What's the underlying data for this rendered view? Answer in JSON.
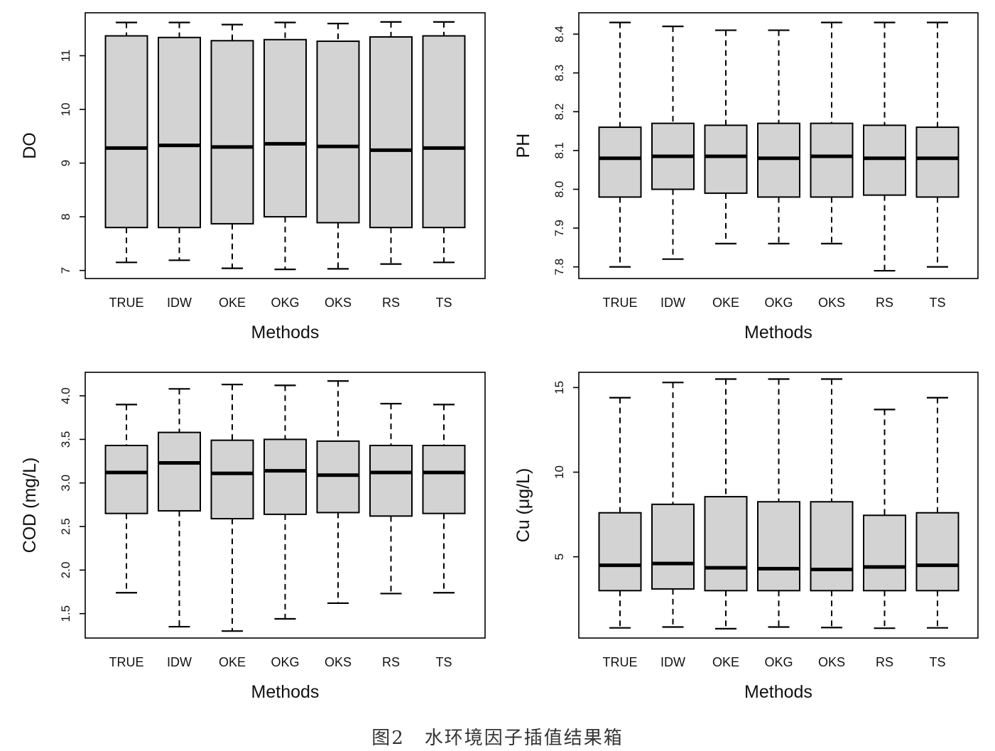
{
  "figure_caption": "图2　水环境因子插值结果箱",
  "chart_data": [
    {
      "type": "box",
      "xlabel": "Methods",
      "ylabel": "DO",
      "categories": [
        "TRUE",
        "IDW",
        "OKE",
        "OKG",
        "OKS",
        "RS",
        "TS"
      ],
      "yticks": [
        7,
        8,
        9,
        10,
        11
      ],
      "ylim": [
        6.85,
        11.8
      ],
      "boxes": [
        {
          "min": 7.15,
          "q1": 7.8,
          "median": 9.28,
          "q3": 11.37,
          "max": 11.62
        },
        {
          "min": 7.19,
          "q1": 7.8,
          "median": 9.33,
          "q3": 11.34,
          "max": 11.62
        },
        {
          "min": 7.04,
          "q1": 7.87,
          "median": 9.3,
          "q3": 11.28,
          "max": 11.58
        },
        {
          "min": 7.02,
          "q1": 8.0,
          "median": 9.36,
          "q3": 11.3,
          "max": 11.62
        },
        {
          "min": 7.03,
          "q1": 7.89,
          "median": 9.31,
          "q3": 11.27,
          "max": 11.6
        },
        {
          "min": 7.12,
          "q1": 7.8,
          "median": 9.24,
          "q3": 11.35,
          "max": 11.63
        },
        {
          "min": 7.15,
          "q1": 7.8,
          "median": 9.28,
          "q3": 11.37,
          "max": 11.63
        }
      ]
    },
    {
      "type": "box",
      "xlabel": "Methods",
      "ylabel": "PH",
      "categories": [
        "TRUE",
        "IDW",
        "OKE",
        "OKG",
        "OKS",
        "RS",
        "TS"
      ],
      "yticks": [
        7.8,
        7.9,
        8.0,
        8.1,
        8.2,
        8.3,
        8.4
      ],
      "ylim": [
        7.77,
        8.455
      ],
      "boxes": [
        {
          "min": 7.8,
          "q1": 7.98,
          "median": 8.08,
          "q3": 8.16,
          "max": 8.43
        },
        {
          "min": 7.82,
          "q1": 8.0,
          "median": 8.085,
          "q3": 8.17,
          "max": 8.42
        },
        {
          "min": 7.86,
          "q1": 7.99,
          "median": 8.085,
          "q3": 8.165,
          "max": 8.41
        },
        {
          "min": 7.86,
          "q1": 7.98,
          "median": 8.08,
          "q3": 8.17,
          "max": 8.41
        },
        {
          "min": 7.86,
          "q1": 7.98,
          "median": 8.085,
          "q3": 8.17,
          "max": 8.43
        },
        {
          "min": 7.79,
          "q1": 7.985,
          "median": 8.08,
          "q3": 8.165,
          "max": 8.43
        },
        {
          "min": 7.8,
          "q1": 7.98,
          "median": 8.08,
          "q3": 8.16,
          "max": 8.43
        }
      ]
    },
    {
      "type": "box",
      "xlabel": "Methods",
      "ylabel": "COD (mg/L)",
      "categories": [
        "TRUE",
        "IDW",
        "OKE",
        "OKG",
        "OKS",
        "RS",
        "TS"
      ],
      "yticks": [
        1.5,
        2.0,
        2.5,
        3.0,
        3.5,
        4.0
      ],
      "ylim": [
        1.22,
        4.27
      ],
      "boxes": [
        {
          "min": 1.74,
          "q1": 2.65,
          "median": 3.12,
          "q3": 3.43,
          "max": 3.9
        },
        {
          "min": 1.35,
          "q1": 2.68,
          "median": 3.23,
          "q3": 3.58,
          "max": 4.08
        },
        {
          "min": 1.3,
          "q1": 2.59,
          "median": 3.11,
          "q3": 3.49,
          "max": 4.13
        },
        {
          "min": 1.44,
          "q1": 2.64,
          "median": 3.14,
          "q3": 3.5,
          "max": 4.12
        },
        {
          "min": 1.62,
          "q1": 2.66,
          "median": 3.09,
          "q3": 3.48,
          "max": 4.17
        },
        {
          "min": 1.73,
          "q1": 2.62,
          "median": 3.12,
          "q3": 3.43,
          "max": 3.91
        },
        {
          "min": 1.74,
          "q1": 2.65,
          "median": 3.12,
          "q3": 3.43,
          "max": 3.9
        }
      ]
    },
    {
      "type": "box",
      "xlabel": "Methods",
      "ylabel": "Cu (μg/L)",
      "categories": [
        "TRUE",
        "IDW",
        "OKE",
        "OKG",
        "OKS",
        "RS",
        "TS"
      ],
      "yticks": [
        5,
        10,
        15
      ],
      "ylim": [
        0.2,
        15.9
      ],
      "boxes": [
        {
          "min": 0.8,
          "q1": 3.0,
          "median": 4.5,
          "q3": 7.6,
          "max": 14.4
        },
        {
          "min": 0.85,
          "q1": 3.1,
          "median": 4.6,
          "q3": 8.1,
          "max": 15.3
        },
        {
          "min": 0.75,
          "q1": 3.0,
          "median": 4.35,
          "q3": 8.55,
          "max": 15.5
        },
        {
          "min": 0.85,
          "q1": 3.0,
          "median": 4.3,
          "q3": 8.25,
          "max": 15.5
        },
        {
          "min": 0.82,
          "q1": 3.0,
          "median": 4.25,
          "q3": 8.25,
          "max": 15.5
        },
        {
          "min": 0.78,
          "q1": 3.0,
          "median": 4.4,
          "q3": 7.45,
          "max": 13.7
        },
        {
          "min": 0.8,
          "q1": 3.0,
          "median": 4.5,
          "q3": 7.6,
          "max": 14.4
        }
      ]
    }
  ]
}
